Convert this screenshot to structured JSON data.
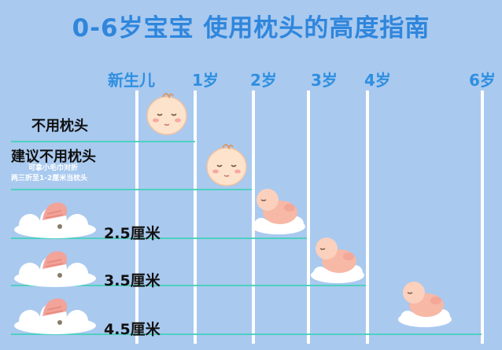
{
  "title": "0-6岁宝宝 使用枕头的高度指南",
  "ages": [
    "新生儿",
    "1岁",
    "2岁",
    "3岁",
    "4岁",
    "6岁"
  ],
  "rows": [
    {
      "label": "不用枕头"
    },
    {
      "label": "建议不用枕头",
      "note_line1": "可拿小毛巾对折",
      "note_line2": "两三折至1-2厘米当枕头"
    },
    {
      "label": "2.5厘米"
    },
    {
      "label": "3.5厘米"
    },
    {
      "label": "4.5厘米"
    }
  ],
  "colors": {
    "background": "#a9c9ef",
    "title": "#2f86dc",
    "ages": "#2f8fe0",
    "gridline": "#ffffff",
    "baseline": "#4fd0bf"
  }
}
